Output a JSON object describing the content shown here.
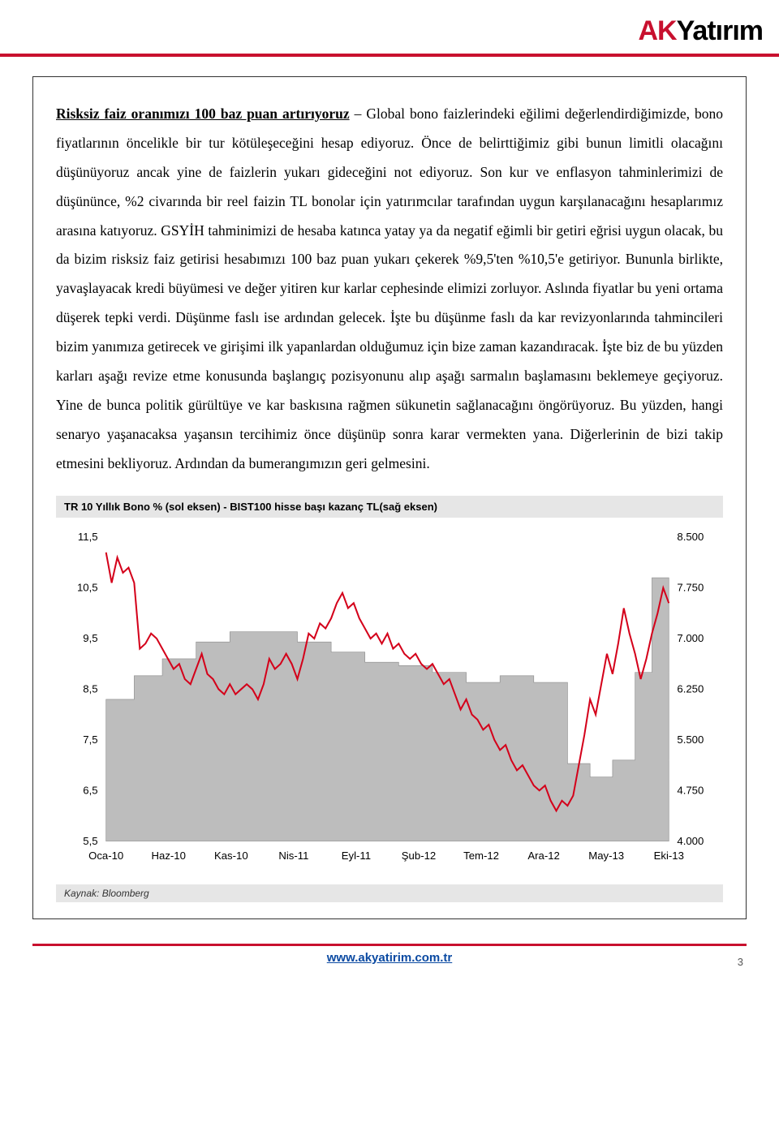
{
  "logo": {
    "part1": "AK",
    "part2": "Yatırım"
  },
  "paragraph": {
    "lead_underlined": "Risksiz faiz oranımızı 100 baz puan artırıyoruz",
    "rest": " – Global bono faizlerindeki eğilimi değerlendirdiğimizde, bono fiyatlarının öncelikle bir tur kötüleşeceğini hesap ediyoruz. Önce de belirttiğimiz gibi bunun limitli olacağını düşünüyoruz ancak yine de faizlerin yukarı gideceğini not ediyoruz. Son kur ve enflasyon tahminlerimizi de düşününce, %2 civarında bir reel faizin TL bonolar için yatırımcılar tarafından uygun karşılanacağını hesaplarımız arasına katıyoruz. GSYİH tahminimizi de hesaba katınca yatay ya da negatif eğimli bir getiri eğrisi uygun olacak, bu da bizim risksiz faiz getirisi hesabımızı 100 baz puan yukarı çekerek %9,5'ten  %10,5'e getiriyor. Bununla birlikte, yavaşlayacak kredi büyümesi ve değer yitiren kur karlar cephesinde elimizi zorluyor. Aslında fiyatlar bu yeni ortama düşerek tepki verdi. Düşünme faslı ise ardından gelecek. İşte bu düşünme faslı da kar revizyonlarında tahmincileri bizim yanımıza getirecek ve girişimi ilk yapanlardan olduğumuz için bize zaman kazandıracak. İşte biz de bu yüzden karları aşağı revize etme konusunda başlangıç pozisyonunu alıp aşağı sarmalın başlamasını beklemeye geçiyoruz. Yine de bunca politik gürültüye ve kar baskısına rağmen sükunetin sağlanacağını öngörüyoruz. Bu yüzden, hangi senaryo yaşanacaksa yaşansın tercihimiz önce düşünüp sonra karar vermekten yana. Diğerlerinin de bizi takip etmesini bekliyoruz. Ardından da bumerangımızın geri gelmesini."
  },
  "chart": {
    "title": "TR 10 Yıllık Bono % (sol eksen) - BIST100 hisse başı kazanç TL(sağ eksen)",
    "source": "Kaynak: Bloomberg",
    "left_axis": {
      "min": 5.5,
      "max": 11.5,
      "step": 1.0,
      "labels": [
        "11,5",
        "10,5",
        "9,5",
        "8,5",
        "7,5",
        "6,5",
        "5,5"
      ]
    },
    "right_axis": {
      "min": 4000,
      "max": 8500,
      "step": 750,
      "labels": [
        "8.500",
        "7.750",
        "7.000",
        "6.250",
        "5.500",
        "4.750",
        "4.000"
      ]
    },
    "x_labels": [
      "Oca-10",
      "Haz-10",
      "Kas-10",
      "Nis-11",
      "Eyl-11",
      "Şub-12",
      "Tem-12",
      "Ara-12",
      "May-13",
      "Eki-13"
    ],
    "colors": {
      "line": "#d4001a",
      "area_fill": "#bdbdbd",
      "area_stroke": "#8a8a8a",
      "grid": "#ffffff",
      "bg": "#ffffff"
    },
    "area_series": [
      [
        0,
        6.1
      ],
      [
        5,
        6.1
      ],
      [
        5,
        6.45
      ],
      [
        10,
        6.45
      ],
      [
        10,
        6.7
      ],
      [
        16,
        6.7
      ],
      [
        16,
        6.95
      ],
      [
        22,
        6.95
      ],
      [
        22,
        7.1
      ],
      [
        28,
        7.1
      ],
      [
        28,
        7.1
      ],
      [
        34,
        7.1
      ],
      [
        34,
        6.95
      ],
      [
        40,
        6.95
      ],
      [
        40,
        6.8
      ],
      [
        46,
        6.8
      ],
      [
        46,
        6.65
      ],
      [
        52,
        6.65
      ],
      [
        52,
        6.6
      ],
      [
        58,
        6.6
      ],
      [
        58,
        6.5
      ],
      [
        64,
        6.5
      ],
      [
        64,
        6.35
      ],
      [
        70,
        6.35
      ],
      [
        70,
        6.45
      ],
      [
        76,
        6.45
      ],
      [
        76,
        6.35
      ],
      [
        82,
        6.35
      ],
      [
        82,
        5.15
      ],
      [
        86,
        5.15
      ],
      [
        86,
        4.95
      ],
      [
        90,
        4.95
      ],
      [
        90,
        5.2
      ],
      [
        94,
        5.2
      ],
      [
        94,
        6.5
      ],
      [
        97,
        6.5
      ],
      [
        97,
        7.9
      ],
      [
        100,
        7.9
      ]
    ],
    "line_series": [
      [
        0,
        11.2
      ],
      [
        1,
        10.6
      ],
      [
        2,
        11.1
      ],
      [
        3,
        10.8
      ],
      [
        4,
        10.9
      ],
      [
        5,
        10.6
      ],
      [
        6,
        9.3
      ],
      [
        7,
        9.4
      ],
      [
        8,
        9.6
      ],
      [
        9,
        9.5
      ],
      [
        10,
        9.3
      ],
      [
        11,
        9.1
      ],
      [
        12,
        8.9
      ],
      [
        13,
        9.0
      ],
      [
        14,
        8.7
      ],
      [
        15,
        8.6
      ],
      [
        16,
        8.9
      ],
      [
        17,
        9.2
      ],
      [
        18,
        8.8
      ],
      [
        19,
        8.7
      ],
      [
        20,
        8.5
      ],
      [
        21,
        8.4
      ],
      [
        22,
        8.6
      ],
      [
        23,
        8.4
      ],
      [
        24,
        8.5
      ],
      [
        25,
        8.6
      ],
      [
        26,
        8.5
      ],
      [
        27,
        8.3
      ],
      [
        28,
        8.6
      ],
      [
        29,
        9.1
      ],
      [
        30,
        8.9
      ],
      [
        31,
        9.0
      ],
      [
        32,
        9.2
      ],
      [
        33,
        9.0
      ],
      [
        34,
        8.7
      ],
      [
        35,
        9.1
      ],
      [
        36,
        9.6
      ],
      [
        37,
        9.5
      ],
      [
        38,
        9.8
      ],
      [
        39,
        9.7
      ],
      [
        40,
        9.9
      ],
      [
        41,
        10.2
      ],
      [
        42,
        10.4
      ],
      [
        43,
        10.1
      ],
      [
        44,
        10.2
      ],
      [
        45,
        9.9
      ],
      [
        46,
        9.7
      ],
      [
        47,
        9.5
      ],
      [
        48,
        9.6
      ],
      [
        49,
        9.4
      ],
      [
        50,
        9.6
      ],
      [
        51,
        9.3
      ],
      [
        52,
        9.4
      ],
      [
        53,
        9.2
      ],
      [
        54,
        9.1
      ],
      [
        55,
        9.2
      ],
      [
        56,
        9.0
      ],
      [
        57,
        8.9
      ],
      [
        58,
        9.0
      ],
      [
        59,
        8.8
      ],
      [
        60,
        8.6
      ],
      [
        61,
        8.7
      ],
      [
        62,
        8.4
      ],
      [
        63,
        8.1
      ],
      [
        64,
        8.3
      ],
      [
        65,
        8.0
      ],
      [
        66,
        7.9
      ],
      [
        67,
        7.7
      ],
      [
        68,
        7.8
      ],
      [
        69,
        7.5
      ],
      [
        70,
        7.3
      ],
      [
        71,
        7.4
      ],
      [
        72,
        7.1
      ],
      [
        73,
        6.9
      ],
      [
        74,
        7.0
      ],
      [
        75,
        6.8
      ],
      [
        76,
        6.6
      ],
      [
        77,
        6.5
      ],
      [
        78,
        6.6
      ],
      [
        79,
        6.3
      ],
      [
        80,
        6.1
      ],
      [
        81,
        6.3
      ],
      [
        82,
        6.2
      ],
      [
        83,
        6.4
      ],
      [
        84,
        7.0
      ],
      [
        85,
        7.6
      ],
      [
        86,
        8.3
      ],
      [
        87,
        8.0
      ],
      [
        88,
        8.6
      ],
      [
        89,
        9.2
      ],
      [
        90,
        8.8
      ],
      [
        91,
        9.4
      ],
      [
        92,
        10.1
      ],
      [
        93,
        9.6
      ],
      [
        94,
        9.2
      ],
      [
        95,
        8.7
      ],
      [
        96,
        9.1
      ],
      [
        97,
        9.6
      ],
      [
        98,
        10.0
      ],
      [
        99,
        10.5
      ],
      [
        100,
        10.2
      ]
    ]
  },
  "footer": {
    "url": "www.akyatirim.com.tr",
    "page": "3"
  }
}
